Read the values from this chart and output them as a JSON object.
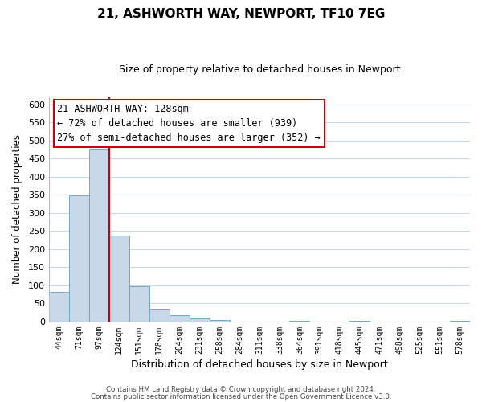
{
  "title": "21, ASHWORTH WAY, NEWPORT, TF10 7EG",
  "subtitle": "Size of property relative to detached houses in Newport",
  "xlabel": "Distribution of detached houses by size in Newport",
  "ylabel": "Number of detached properties",
  "bar_labels": [
    "44sqm",
    "71sqm",
    "97sqm",
    "124sqm",
    "151sqm",
    "178sqm",
    "204sqm",
    "231sqm",
    "258sqm",
    "284sqm",
    "311sqm",
    "338sqm",
    "364sqm",
    "391sqm",
    "418sqm",
    "445sqm",
    "471sqm",
    "498sqm",
    "525sqm",
    "551sqm",
    "578sqm"
  ],
  "bar_values": [
    83,
    348,
    476,
    238,
    97,
    35,
    18,
    8,
    5,
    0,
    0,
    0,
    3,
    0,
    0,
    2,
    0,
    0,
    0,
    0,
    3
  ],
  "bar_color": "#c8d8e8",
  "bar_edge_color": "#6fa8c8",
  "vline_color": "#cc0000",
  "vline_pos": 2.5,
  "ylim": [
    0,
    620
  ],
  "yticks": [
    0,
    50,
    100,
    150,
    200,
    250,
    300,
    350,
    400,
    450,
    500,
    550,
    600
  ],
  "annotation_title": "21 ASHWORTH WAY: 128sqm",
  "annotation_line1": "← 72% of detached houses are smaller (939)",
  "annotation_line2": "27% of semi-detached houses are larger (352) →",
  "footer_line1": "Contains HM Land Registry data © Crown copyright and database right 2024.",
  "footer_line2": "Contains public sector information licensed under the Open Government Licence v3.0.",
  "background_color": "#ffffff",
  "grid_color": "#c8d8e8"
}
